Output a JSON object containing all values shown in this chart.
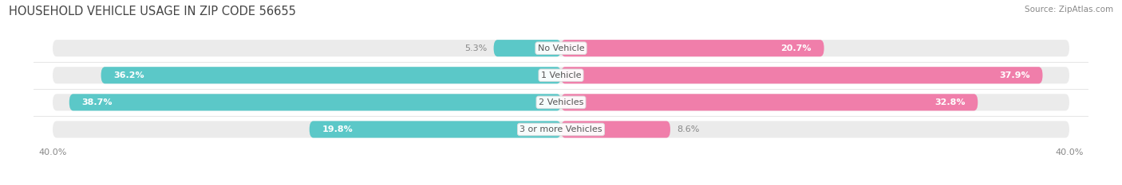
{
  "title": "HOUSEHOLD VEHICLE USAGE IN ZIP CODE 56655",
  "source": "Source: ZipAtlas.com",
  "categories": [
    "No Vehicle",
    "1 Vehicle",
    "2 Vehicles",
    "3 or more Vehicles"
  ],
  "owner_values": [
    5.3,
    36.2,
    38.7,
    19.8
  ],
  "renter_values": [
    20.7,
    37.9,
    32.8,
    8.6
  ],
  "owner_color": "#5bc8c8",
  "renter_color": "#f07eaa",
  "bar_bg_color": "#ebebeb",
  "axis_max": 40.0,
  "bar_height": 0.62,
  "title_fontsize": 10.5,
  "source_fontsize": 7.5,
  "label_fontsize": 8,
  "tick_fontsize": 8,
  "category_fontsize": 8,
  "legend_fontsize": 8.5,
  "figure_bg": "#ffffff",
  "axes_bg": "#ffffff",
  "owner_label_color": "#ffffff",
  "renter_label_color": "#ffffff",
  "outside_label_color": "#888888",
  "category_label_color": "#555555"
}
